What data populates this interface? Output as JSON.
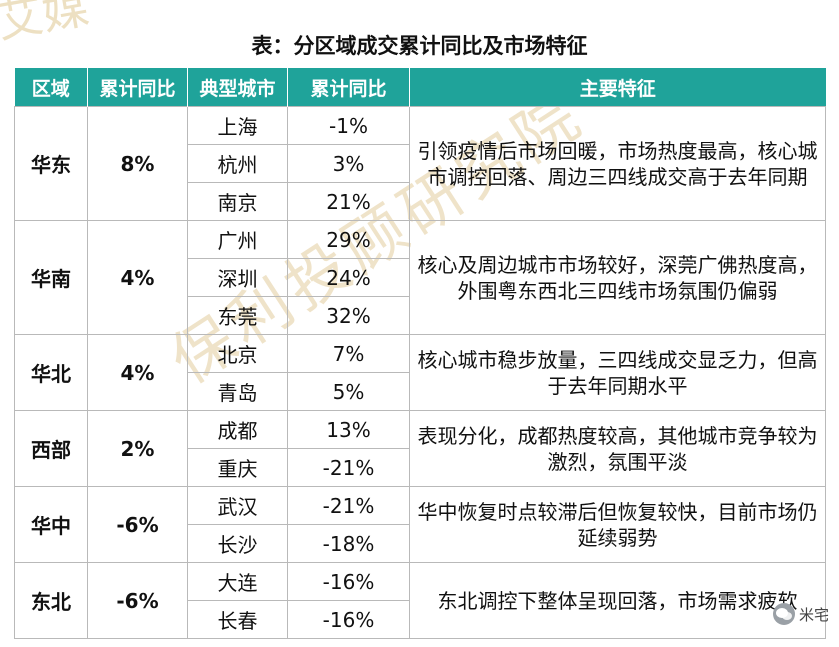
{
  "watermarks": {
    "top": "艾媒",
    "diagonal": "保利投顾研究院"
  },
  "title": "表：分区域成交累计同比及市场特征",
  "headers": [
    "区域",
    "累计同比",
    "典型城市",
    "累计同比",
    "主要特征"
  ],
  "regions": [
    {
      "name": "华东",
      "pct": "8%",
      "feature": "引领疫情后市场回暖，市场热度最高，核心城市调控回落、周边三四线成交高于去年同期",
      "cities": [
        {
          "city": "上海",
          "pct": "-1%"
        },
        {
          "city": "杭州",
          "pct": "3%"
        },
        {
          "city": "南京",
          "pct": "21%"
        }
      ]
    },
    {
      "name": "华南",
      "pct": "4%",
      "feature": "核心及周边城市市场较好，深莞广佛热度高，外围粤东西北三四线市场氛围仍偏弱",
      "cities": [
        {
          "city": "广州",
          "pct": "29%"
        },
        {
          "city": "深圳",
          "pct": "24%"
        },
        {
          "city": "东莞",
          "pct": "32%"
        }
      ]
    },
    {
      "name": "华北",
      "pct": "4%",
      "feature": "核心城市稳步放量，三四线成交显乏力，但高于去年同期水平",
      "cities": [
        {
          "city": "北京",
          "pct": "7%"
        },
        {
          "city": "青岛",
          "pct": "5%"
        }
      ]
    },
    {
      "name": "西部",
      "pct": "2%",
      "feature": "表现分化，成都热度较高，其他城市竞争较为激烈，氛围平淡",
      "cities": [
        {
          "city": "成都",
          "pct": "13%"
        },
        {
          "city": "重庆",
          "pct": "-21%"
        }
      ]
    },
    {
      "name": "华中",
      "pct": "-6%",
      "feature": "华中恢复时点较滞后但恢复较快，目前市场仍延续弱势",
      "cities": [
        {
          "city": "武汉",
          "pct": "-21%"
        },
        {
          "city": "长沙",
          "pct": "-18%"
        }
      ]
    },
    {
      "name": "东北",
      "pct": "-6%",
      "feature": "东北调控下整体呈现回落，市场需求疲软",
      "cities": [
        {
          "city": "大连",
          "pct": "-16%"
        },
        {
          "city": "长春",
          "pct": "-16%"
        }
      ]
    }
  ],
  "colors": {
    "header_bg": "#1fa39a",
    "positive": "#c0181f",
    "negative": "#4e8a2f",
    "neutral": "#111111"
  },
  "source_badge": {
    "label": "米宅",
    "icon": "wechat-icon"
  }
}
